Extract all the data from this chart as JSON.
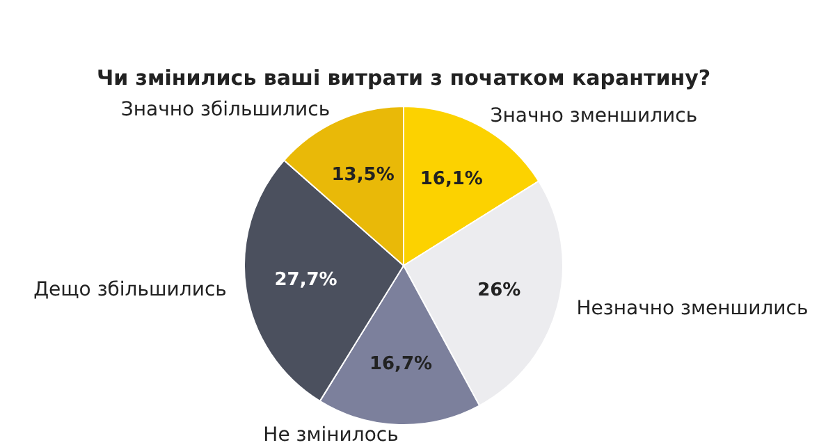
{
  "chart_data": {
    "type": "pie",
    "title": "Чи змінились ваші витрати з початком карантину?",
    "categories": [
      "Значно зменшились",
      "Незначно зменшились",
      "Не змінилось",
      "Дещо збільшились",
      "Значно збільшились"
    ],
    "values": [
      16.1,
      26,
      16.7,
      27.7,
      13.5
    ],
    "colors": [
      "#fcd200",
      "#ececef",
      "#7c809c",
      "#4b505e",
      "#e9b908"
    ],
    "value_labels": [
      "16,1%",
      "26%",
      "16,7%",
      "27,7%",
      "13,5%"
    ]
  }
}
